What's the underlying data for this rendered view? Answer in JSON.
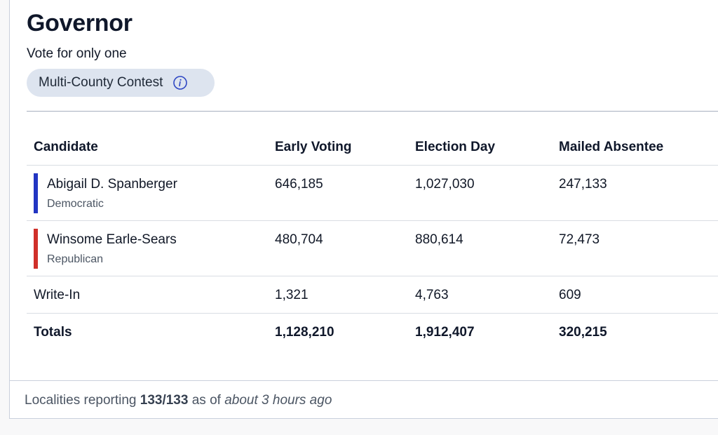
{
  "contest": {
    "title": "Governor",
    "instruction": "Vote for only one",
    "badge_label": "Multi-County Contest",
    "badge_icon": "info-icon"
  },
  "table": {
    "headers": [
      "Candidate",
      "Early Voting",
      "Election Day",
      "Mailed Absentee"
    ],
    "rows": [
      {
        "name": "Abigail D. Spanberger",
        "party": "Democratic",
        "party_color": "#2235c2",
        "early": "646,185",
        "election_day": "1,027,030",
        "mailed": "247,133"
      },
      {
        "name": "Winsome Earle-Sears",
        "party": "Republican",
        "party_color": "#d0302a",
        "early": "480,704",
        "election_day": "880,614",
        "mailed": "72,473"
      },
      {
        "name": "Write-In",
        "party": "",
        "party_color": "",
        "early": "1,321",
        "election_day": "4,763",
        "mailed": "609"
      }
    ],
    "totals": {
      "label": "Totals",
      "early": "1,128,210",
      "election_day": "1,912,407",
      "mailed": "320,215"
    }
  },
  "footer": {
    "prefix": "Localities reporting ",
    "count": "133/133",
    "middle": " as of ",
    "time": "about 3 hours ago"
  }
}
